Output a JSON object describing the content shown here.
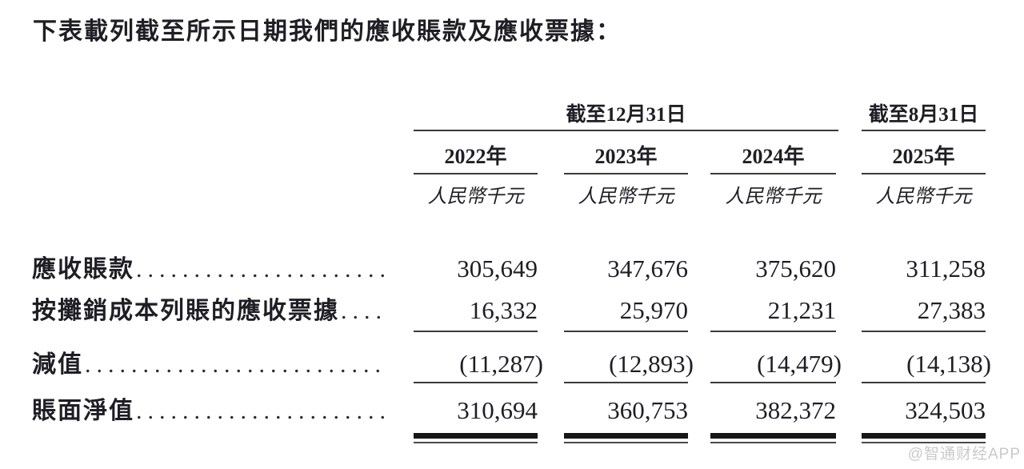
{
  "title": "下表載列截至所示日期我們的應收賬款及應收票據：",
  "table": {
    "dot_leader": "........................................",
    "header": {
      "group_dec": "截至12月31日",
      "group_aug": "截至8月31日",
      "years": [
        "2022年",
        "2023年",
        "2024年",
        "2025年"
      ],
      "unit": "人民幣千元"
    },
    "rows": [
      {
        "label": "應收賬款",
        "values": [
          "305,649",
          "347,676",
          "375,620",
          "311,258"
        ]
      },
      {
        "label": "按攤銷成本列賬的應收票據",
        "values": [
          "16,332",
          "25,970",
          "21,231",
          "27,383"
        ]
      },
      {
        "label": "減值",
        "values": [
          "(11,287)",
          "(12,893)",
          "(14,479)",
          "(14,138)"
        ]
      },
      {
        "label": "賬面淨值",
        "values": [
          "310,694",
          "360,753",
          "382,372",
          "324,503"
        ]
      }
    ]
  },
  "watermark": "@智通财经APP",
  "colors": {
    "text": "#1e1e24",
    "rule": "#3a3a3a",
    "total_rule": "#161616",
    "watermark": "#c9c9c9",
    "background": "#ffffff"
  }
}
